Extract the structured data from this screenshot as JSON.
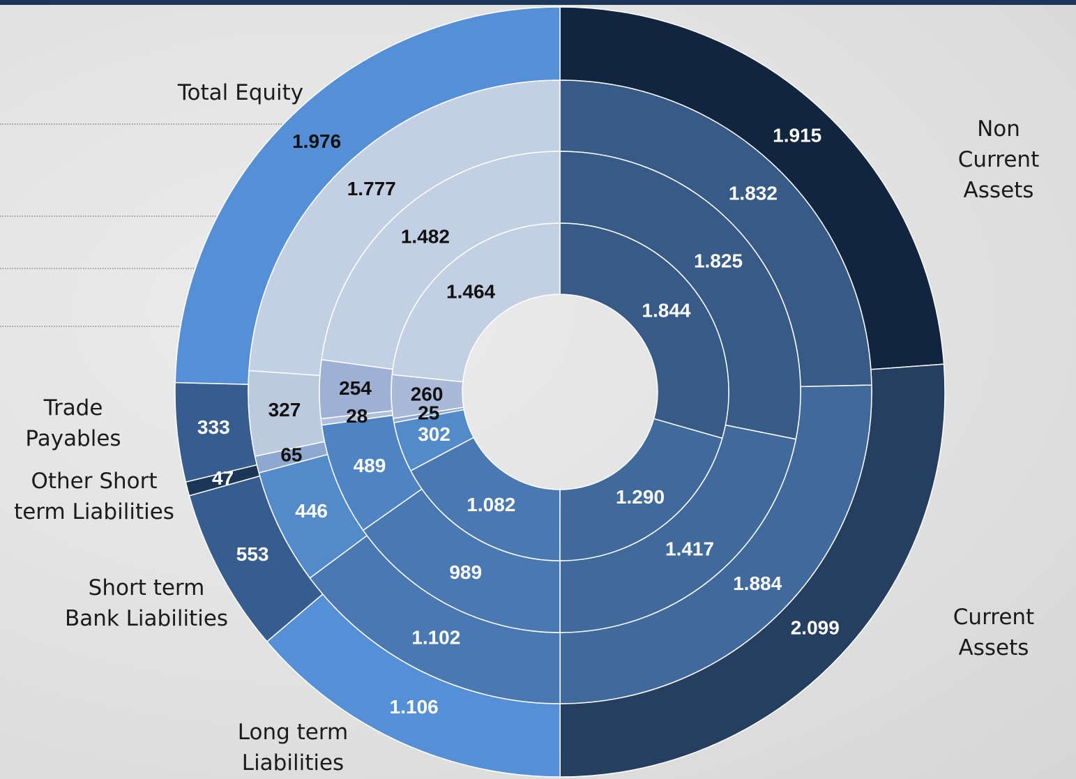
{
  "chart_data": {
    "type": "donut",
    "categories": [
      "Non Current\nAssets",
      "Current\nAssets",
      "Long term\nLiabilities",
      "Short term\nBank Liabilities",
      "Other Short\nterm Liabilities",
      "Trade\nPayables",
      "Total Equity"
    ],
    "series": [
      {
        "values": [
          1915,
          2099,
          1106,
          553,
          47,
          333,
          1976
        ],
        "value_labels": [
          "1.915",
          "2.099",
          "1.106",
          "553",
          "47",
          "333",
          "1.976"
        ],
        "colors": [
          "#12253f",
          "#263f60",
          "#5590d7",
          "#365d8d",
          "#1c3658",
          "#365d8d",
          "#5590d7"
        ],
        "label_colors": [
          "#ffffff",
          "#ffffff",
          "#ffffff",
          "#ffffff",
          "#ffffff",
          "#ffffff",
          "#111111"
        ]
      },
      {
        "values": [
          1832,
          1884,
          1102,
          446,
          65,
          327,
          1777
        ],
        "value_labels": [
          "1.832",
          "1.884",
          "1.102",
          "446",
          "65",
          "327",
          "1.777"
        ],
        "colors": [
          "#385a86",
          "#40699c",
          "#4a78b0",
          "#538ac9",
          "#8fa8d0",
          "#bccadf",
          "#c3d0e3"
        ],
        "label_colors": [
          "#ffffff",
          "#ffffff",
          "#ffffff",
          "#ffffff",
          "#111111",
          "#111111",
          "#111111"
        ]
      },
      {
        "values": [
          1825,
          1417,
          989,
          489,
          28,
          254,
          1482
        ],
        "value_labels": [
          "1.825",
          "1.417",
          "989",
          "489",
          "28",
          "254",
          "1.482"
        ],
        "colors": [
          "#385a86",
          "#40699c",
          "#4a78b0",
          "#4f84c4",
          "#b0bfdb",
          "#9eb1d4",
          "#c3d0e3"
        ],
        "label_colors": [
          "#ffffff",
          "#ffffff",
          "#ffffff",
          "#ffffff",
          "#111111",
          "#111111",
          "#111111"
        ]
      },
      {
        "values": [
          1844,
          1290,
          1082,
          302,
          25,
          260,
          1464
        ],
        "value_labels": [
          "1.844",
          "1.290",
          "1.082",
          "302",
          "25",
          "260",
          "1.464"
        ],
        "colors": [
          "#385a86",
          "#40699c",
          "#4a78b0",
          "#538ac9",
          "#8fa8d0",
          "#a9b9d7",
          "#c3d0e3"
        ],
        "label_colors": [
          "#ffffff",
          "#ffffff",
          "#ffffff",
          "#ffffff",
          "#111111",
          "#111111",
          "#111111"
        ]
      }
    ]
  }
}
